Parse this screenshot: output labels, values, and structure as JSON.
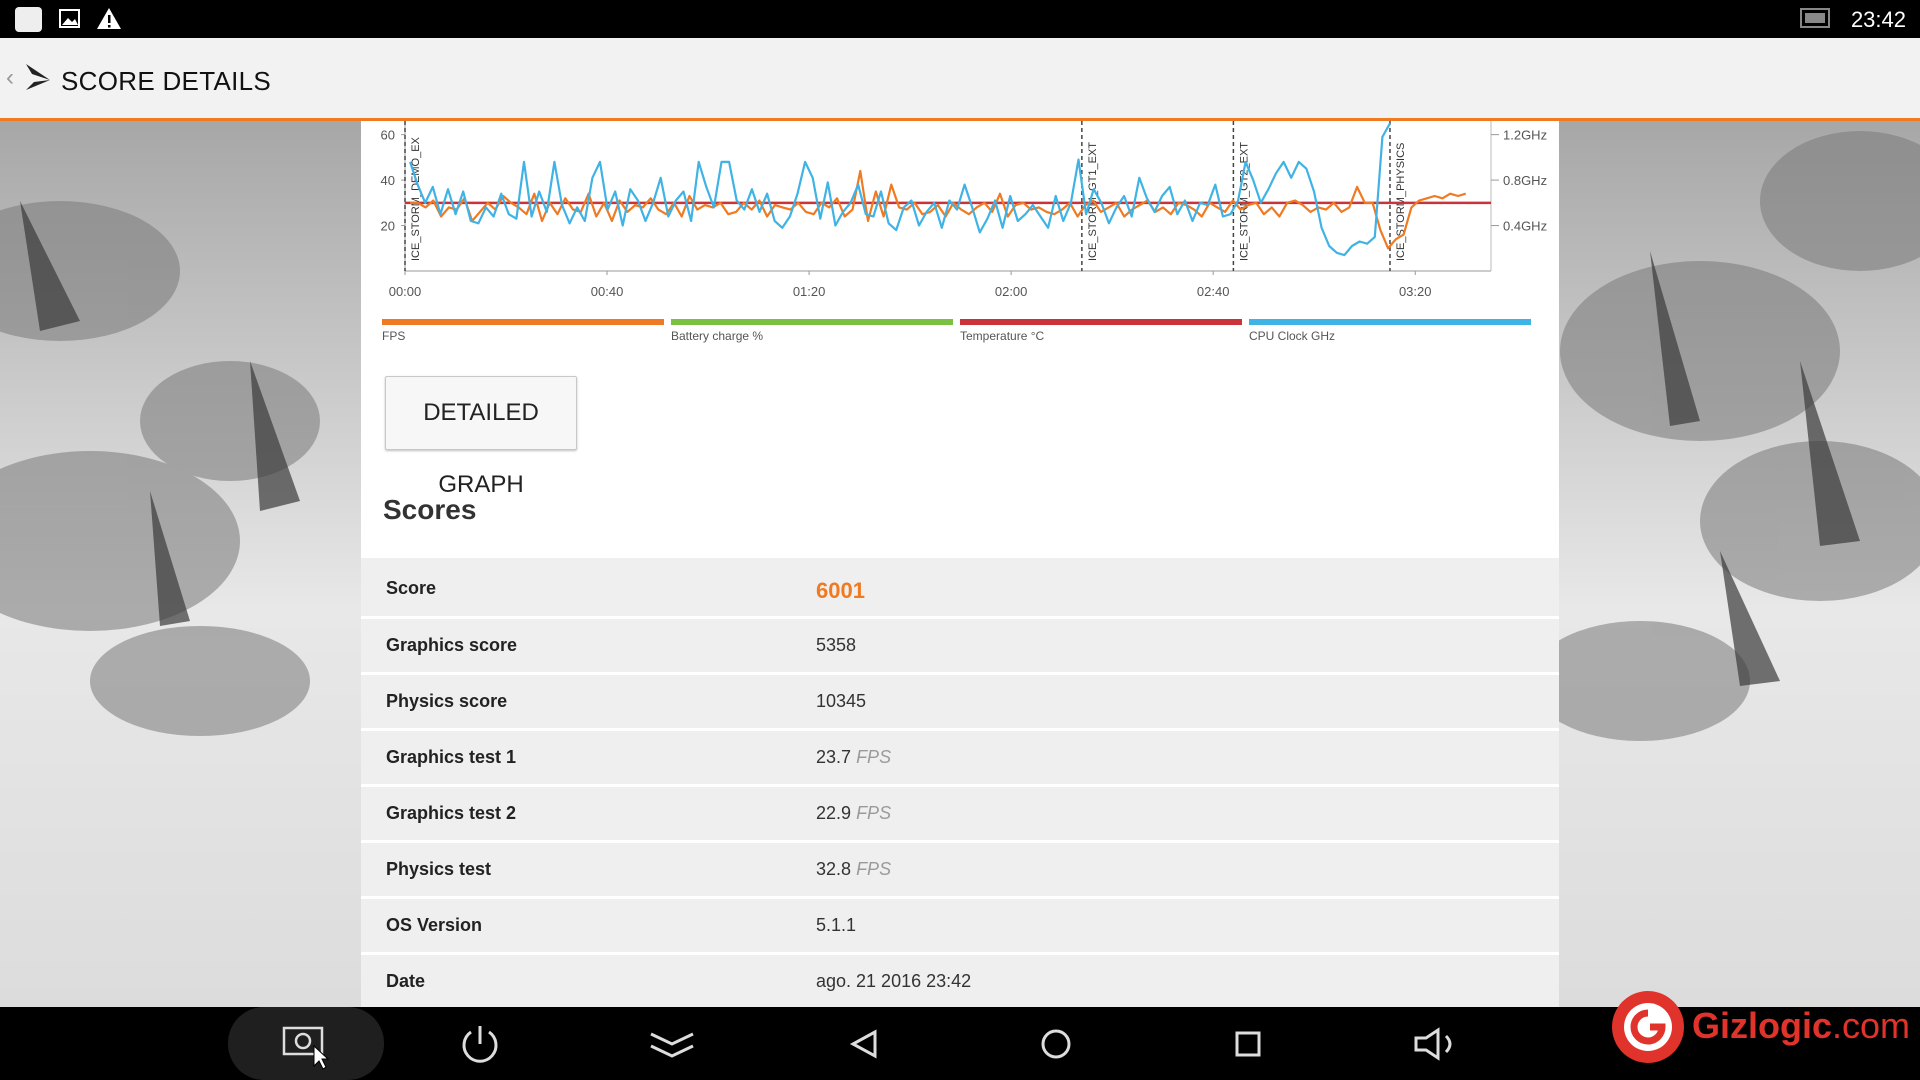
{
  "status_bar": {
    "time": "23:42",
    "icons": [
      "app-notification-icon",
      "image-notification-icon",
      "warning-icon",
      "cast-screen-icon"
    ]
  },
  "app_bar": {
    "title": "SCORE DETAILS",
    "back_icon": "chevron-left-icon",
    "logo_icon": "3dmark-logo-icon"
  },
  "chart_data": {
    "type": "line",
    "x_ticks": [
      "00:00",
      "00:40",
      "01:20",
      "02:00",
      "02:40",
      "03:20"
    ],
    "x_range_seconds": [
      0,
      215
    ],
    "left_axis_ticks": [
      "60",
      "40",
      "20"
    ],
    "left_axis_range": [
      0,
      66
    ],
    "right_axis_ticks": [
      "1.2GHz",
      "0.8GHz",
      "0.4GHz"
    ],
    "right_axis_range_ghz": [
      0,
      1.32
    ],
    "markers": [
      {
        "label": "ICE_STORM_DEMO_EX",
        "x": 0
      },
      {
        "label": "ICE_STORM_GT1_EXT",
        "x": 134
      },
      {
        "label": "ICE_STORM_GT2_EXT",
        "x": 164
      },
      {
        "label": "ICE_STORM_PHYSICS",
        "x": 195
      }
    ],
    "series": [
      {
        "name": "FPS",
        "color": "#f07a22",
        "axis": "left",
        "values": [
          30,
          30,
          28,
          31,
          24,
          28,
          27,
          32,
          22,
          26,
          30,
          27,
          33,
          30,
          28,
          25,
          34,
          22,
          30,
          25,
          32,
          27,
          26,
          34,
          24,
          30,
          22,
          31,
          26,
          29,
          28,
          32,
          27,
          25,
          30,
          24,
          33,
          27,
          29,
          28,
          30,
          25,
          26,
          30,
          27,
          31,
          24,
          29,
          28,
          27,
          30,
          26,
          25,
          30,
          28,
          32,
          24,
          27,
          44,
          22,
          35,
          24,
          38,
          28,
          27,
          30,
          25,
          26,
          29,
          24,
          30,
          27,
          25,
          28,
          30,
          26,
          34,
          24,
          29,
          30,
          27,
          28,
          26,
          25,
          27,
          30,
          24,
          29,
          31,
          26,
          28,
          30,
          24,
          27,
          29,
          31,
          26,
          28,
          25,
          30,
          29,
          27,
          24,
          30,
          28,
          26,
          31,
          27,
          29,
          30,
          25,
          28,
          24,
          30,
          31,
          29,
          26,
          28,
          27,
          30,
          26,
          28,
          37,
          30,
          30,
          18,
          10,
          14,
          16,
          28,
          31,
          32,
          33,
          32,
          34,
          33,
          34
        ]
      },
      {
        "name": "Battery charge %",
        "color": "#7ac143",
        "axis": "left",
        "values": []
      },
      {
        "name": "Temperature °C",
        "color": "#c9343a",
        "axis": "left",
        "values": [
          30,
          30
        ]
      },
      {
        "name": "CPU Clock GHz",
        "color": "#3fb3e5",
        "axis": "right",
        "values": [
          0.96,
          0.76,
          0.6,
          0.74,
          0.5,
          0.72,
          0.5,
          0.7,
          0.44,
          0.42,
          0.56,
          0.48,
          0.68,
          0.5,
          0.46,
          0.96,
          0.48,
          0.7,
          0.52,
          0.96,
          0.58,
          0.42,
          0.56,
          0.44,
          0.82,
          0.96,
          0.54,
          0.7,
          0.4,
          0.72,
          0.62,
          0.44,
          0.6,
          0.82,
          0.48,
          0.62,
          0.7,
          0.44,
          0.96,
          0.74,
          0.56,
          0.96,
          0.96,
          0.62,
          0.54,
          0.72,
          0.52,
          0.68,
          0.44,
          0.38,
          0.48,
          0.68,
          0.96,
          0.82,
          0.46,
          0.78,
          0.4,
          0.52,
          0.6,
          0.76,
          0.5,
          0.48,
          0.7,
          0.42,
          0.36,
          0.56,
          0.62,
          0.4,
          0.52,
          0.6,
          0.38,
          0.62,
          0.54,
          0.76,
          0.56,
          0.34,
          0.46,
          0.62,
          0.38,
          0.66,
          0.44,
          0.5,
          0.58,
          0.48,
          0.38,
          0.66,
          0.44,
          0.6,
          0.98,
          0.5,
          0.72,
          0.6,
          0.42,
          0.56,
          0.66,
          0.48,
          0.82,
          0.64,
          0.52,
          0.66,
          0.74,
          0.5,
          0.62,
          0.44,
          0.6,
          0.58,
          0.76,
          0.48,
          0.5,
          0.62,
          0.96,
          0.8,
          0.6,
          0.72,
          0.86,
          0.96,
          0.82,
          0.96,
          0.9,
          0.7,
          0.38,
          0.22,
          0.16,
          0.14,
          0.22,
          0.26,
          0.24,
          0.3,
          1.18,
          1.3
        ]
      }
    ]
  },
  "legend": [
    {
      "label": "FPS",
      "color": "#f07a22"
    },
    {
      "label": "Battery charge %",
      "color": "#7ac143"
    },
    {
      "label": "Temperature °C",
      "color": "#c9343a"
    },
    {
      "label": "CPU Clock GHz",
      "color": "#3fb3e5"
    }
  ],
  "detailed_graph_button": "DETAILED GRAPH",
  "scores_title": "Scores",
  "scores": [
    {
      "label": "Score",
      "value": "6001",
      "unit": ""
    },
    {
      "label": "Graphics score",
      "value": "5358",
      "unit": ""
    },
    {
      "label": "Physics score",
      "value": "10345",
      "unit": ""
    },
    {
      "label": "Graphics test 1",
      "value": "23.7",
      "unit": "FPS"
    },
    {
      "label": "Graphics test 2",
      "value": "22.9",
      "unit": "FPS"
    },
    {
      "label": "Physics test",
      "value": "32.8",
      "unit": "FPS"
    },
    {
      "label": "OS Version",
      "value": "5.1.1",
      "unit": ""
    },
    {
      "label": "Date",
      "value": "ago. 21 2016 23:42",
      "unit": ""
    }
  ],
  "nav_bar": {
    "icons": [
      "screenshot-icon",
      "power-icon",
      "collapse-icon",
      "back-icon",
      "home-icon",
      "recents-icon",
      "volume-icon"
    ]
  },
  "watermark": {
    "brand": "Gizlogic",
    "suffix": ".com"
  }
}
